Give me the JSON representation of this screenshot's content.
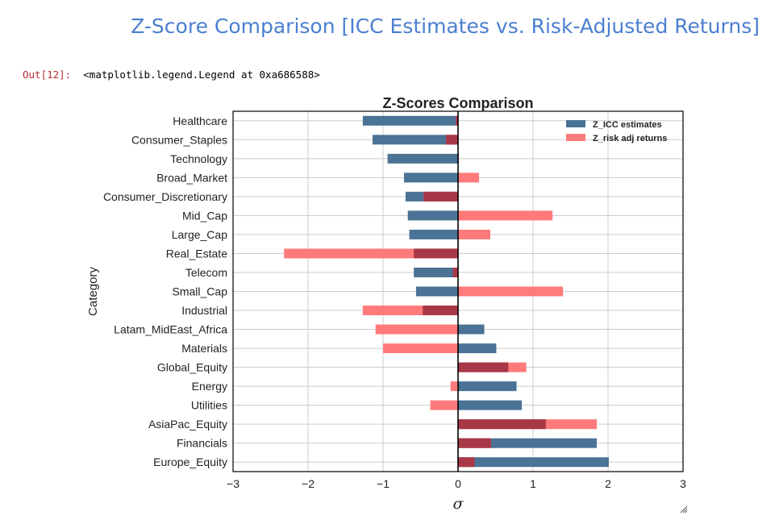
{
  "page": {
    "heading": "Z-Score Comparison [ICC Estimates vs. Risk-Adjusted Returns]",
    "out_prompt": "Out[12]:",
    "out_text": "<matplotlib.legend.Legend at 0xa686588>"
  },
  "colors": {
    "icc": "#4a7396",
    "risk": "#ff7a7a",
    "overlap": "#a83848",
    "heading": "#4a7fd1",
    "prompt": "#b22b31"
  },
  "chart_data": {
    "type": "bar",
    "orientation": "horizontal",
    "title": "Z-Scores Comparison",
    "xlabel": "σ",
    "ylabel": "Category",
    "xlim": [
      -3,
      3
    ],
    "xticks": [
      "−3",
      "−2",
      "−1",
      "0",
      "1",
      "2",
      "3"
    ],
    "xtick_values": [
      -3,
      -2,
      -1,
      0,
      1,
      2,
      3
    ],
    "grid": true,
    "legend_position": "top-right",
    "categories": [
      "Healthcare",
      "Consumer_Staples",
      "Technology",
      "Broad_Market",
      "Consumer_Discretionary",
      "Mid_Cap",
      "Large_Cap",
      "Real_Estate",
      "Telecom",
      "Small_Cap",
      "Industrial",
      "Latam_MidEast_Africa",
      "Materials",
      "Global_Equity",
      "Energy",
      "Utilities",
      "AsiaPac_Equity",
      "Financials",
      "Europe_Equity"
    ],
    "series": [
      {
        "name": "Z_ICC estimates",
        "values": [
          -1.27,
          -1.14,
          -0.94,
          -0.72,
          -0.7,
          -0.67,
          -0.65,
          -0.59,
          -0.59,
          -0.56,
          -0.47,
          0.35,
          0.51,
          0.67,
          0.78,
          0.85,
          1.17,
          1.85,
          2.01
        ]
      },
      {
        "name": "Z_risk adj returns",
        "values": [
          -0.03,
          -0.16,
          0.01,
          0.28,
          -0.46,
          1.26,
          0.43,
          -2.32,
          -0.07,
          1.4,
          -1.27,
          -1.1,
          -1.0,
          0.91,
          -0.1,
          -0.37,
          1.85,
          0.44,
          0.22
        ]
      }
    ]
  }
}
